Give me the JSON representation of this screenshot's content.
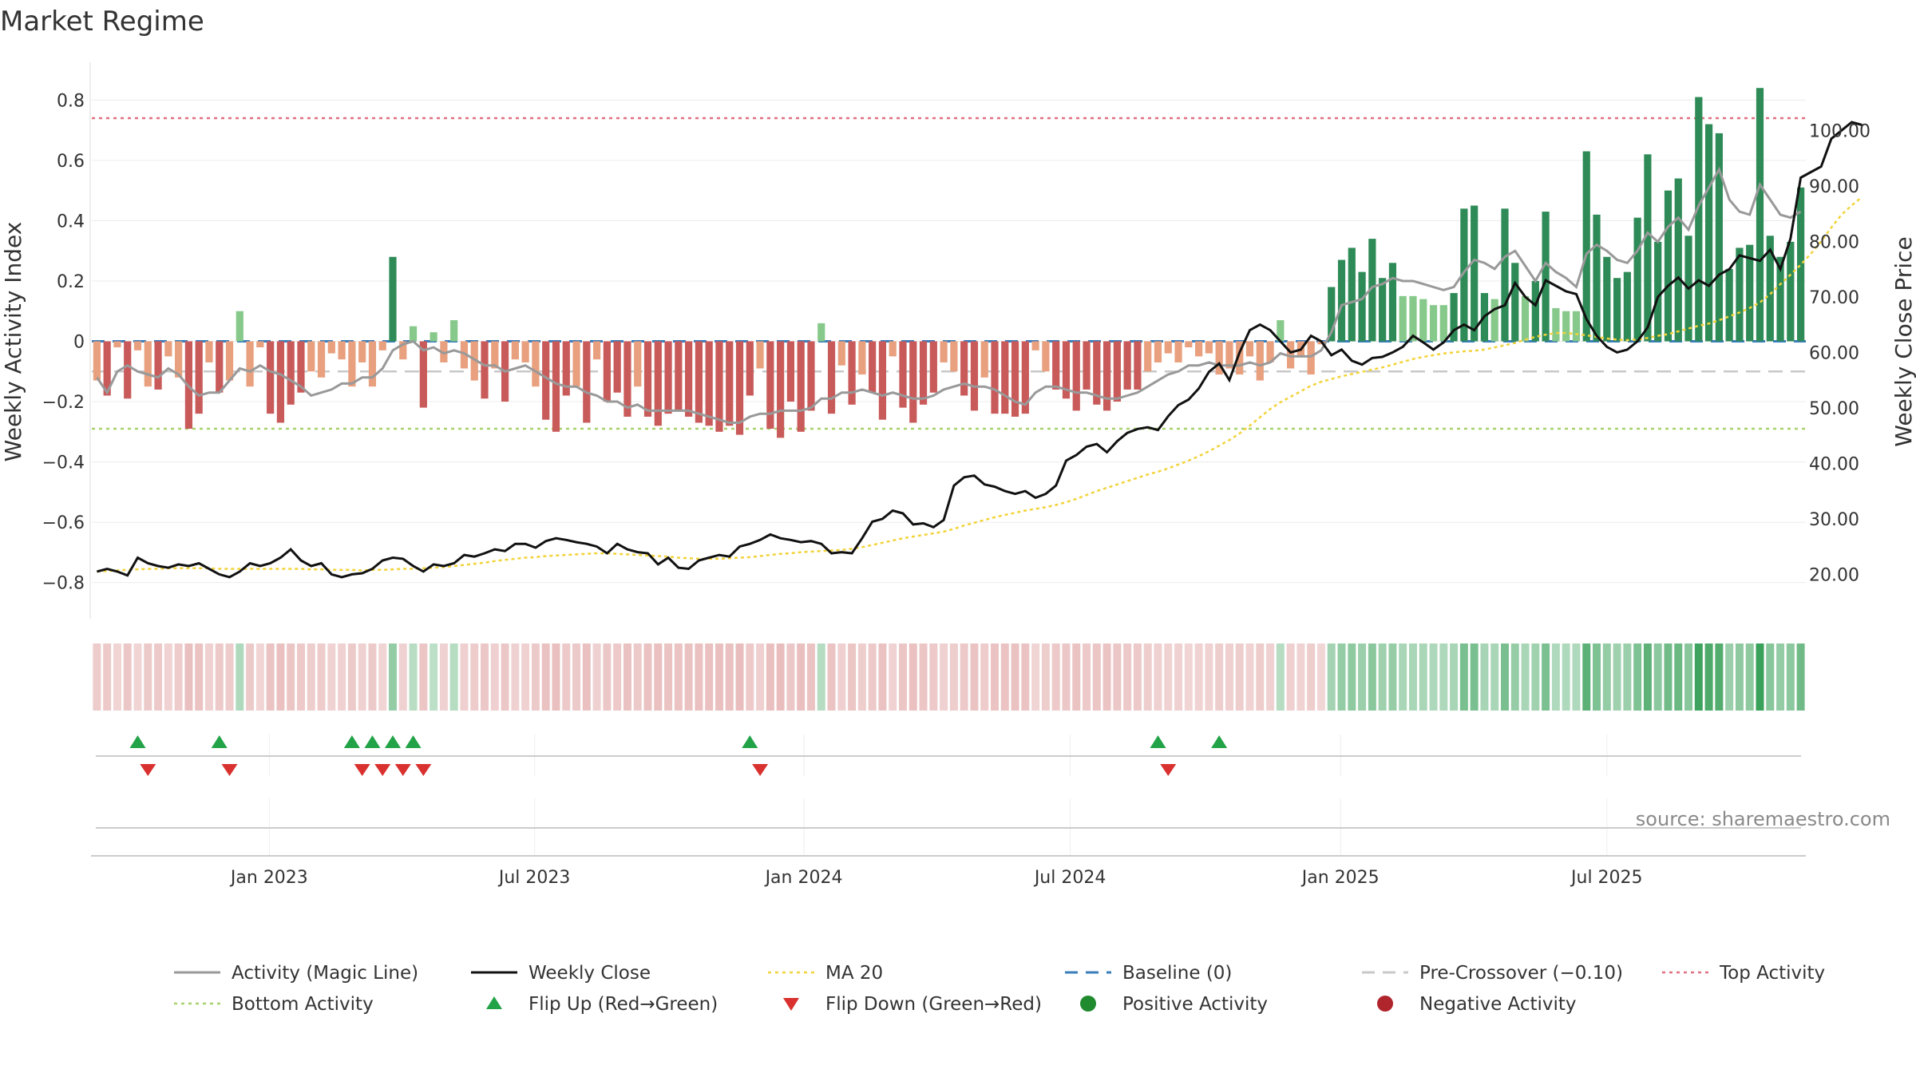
{
  "chart_data": {
    "type": "bar",
    "title": "Market Regime",
    "ylabel_left": "Weekly Activity Index",
    "ylabel_right": "Weekly Close Price",
    "left_ylim": [
      -0.92,
      0.92
    ],
    "right_ylim": [
      12,
      112
    ],
    "left_ticks": [
      "0.8",
      "0.6",
      "0.4",
      "0.2",
      "0",
      "−0.2",
      "−0.4",
      "−0.6",
      "−0.8"
    ],
    "right_ticks": [
      "100.00",
      "90.00",
      "80.00",
      "70.00",
      "60.00",
      "50.00",
      "40.00",
      "30.00",
      "20.00"
    ],
    "x_ticks": [
      "Jan 2023",
      "Jul 2023",
      "Jan 2024",
      "Jul 2024",
      "Jan 2025",
      "Jul 2025"
    ],
    "source": "source: sharemaestro.com",
    "levels": {
      "top_activity": 0.74,
      "bottom_activity": -0.29,
      "pre_crossover": -0.1,
      "baseline": 0
    },
    "series": [
      {
        "name": "Weekly Activity (bars)",
        "values": [
          -0.13,
          -0.18,
          -0.02,
          -0.19,
          -0.03,
          -0.15,
          -0.16,
          -0.05,
          -0.12,
          -0.29,
          -0.24,
          -0.07,
          -0.17,
          -0.13,
          0.1,
          -0.15,
          -0.02,
          -0.24,
          -0.27,
          -0.21,
          -0.17,
          -0.1,
          -0.12,
          -0.04,
          -0.06,
          -0.15,
          -0.07,
          -0.15,
          -0.03,
          0.28,
          -0.06,
          0.05,
          -0.22,
          0.03,
          -0.07,
          0.07,
          -0.09,
          -0.13,
          -0.19,
          -0.09,
          -0.2,
          -0.06,
          -0.07,
          -0.15,
          -0.26,
          -0.3,
          -0.18,
          -0.15,
          -0.27,
          -0.06,
          -0.2,
          -0.17,
          -0.25,
          -0.15,
          -0.25,
          -0.28,
          -0.24,
          -0.23,
          -0.25,
          -0.27,
          -0.28,
          -0.3,
          -0.28,
          -0.31,
          -0.18,
          -0.09,
          -0.29,
          -0.32,
          -0.2,
          -0.3,
          -0.23,
          0.06,
          -0.24,
          -0.08,
          -0.21,
          -0.11,
          -0.17,
          -0.26,
          -0.05,
          -0.22,
          -0.27,
          -0.21,
          -0.17,
          -0.07,
          -0.1,
          -0.18,
          -0.23,
          -0.12,
          -0.24,
          -0.24,
          -0.25,
          -0.24,
          -0.03,
          -0.1,
          -0.16,
          -0.19,
          -0.23,
          -0.16,
          -0.21,
          -0.23,
          -0.2,
          -0.16,
          -0.16,
          -0.1,
          -0.07,
          -0.04,
          -0.07,
          -0.02,
          -0.05,
          -0.04,
          -0.11,
          -0.09,
          -0.11,
          -0.05,
          -0.13,
          -0.07,
          0.07,
          -0.09,
          -0.05,
          -0.11,
          -0.01,
          0.18,
          0.27,
          0.31,
          0.23,
          0.34,
          0.21,
          0.26,
          0.15,
          0.15,
          0.14,
          0.12,
          0.12,
          0.16,
          0.44,
          0.45,
          0.16,
          0.14,
          0.44,
          0.26,
          0.15,
          0.2,
          0.43,
          0.11,
          0.1,
          0.1,
          0.63,
          0.42,
          0.28,
          0.21,
          0.23,
          0.41,
          0.62,
          0.33,
          0.5,
          0.54,
          0.35,
          0.81,
          0.72,
          0.69,
          0.24,
          0.31,
          0.32,
          0.84,
          0.35,
          0.28,
          0.33,
          0.51
        ]
      },
      {
        "name": "Activity (Magic Line)",
        "values": [
          -0.12,
          -0.17,
          -0.1,
          -0.08,
          -0.1,
          -0.11,
          -0.12,
          -0.09,
          -0.11,
          -0.15,
          -0.18,
          -0.17,
          -0.17,
          -0.13,
          -0.09,
          -0.1,
          -0.08,
          -0.1,
          -0.11,
          -0.13,
          -0.15,
          -0.18,
          -0.17,
          -0.16,
          -0.14,
          -0.14,
          -0.12,
          -0.12,
          -0.09,
          -0.03,
          -0.01,
          0.0,
          -0.03,
          -0.02,
          -0.04,
          -0.03,
          -0.04,
          -0.06,
          -0.08,
          -0.08,
          -0.1,
          -0.09,
          -0.08,
          -0.1,
          -0.12,
          -0.14,
          -0.15,
          -0.15,
          -0.17,
          -0.18,
          -0.2,
          -0.2,
          -0.22,
          -0.21,
          -0.23,
          -0.23,
          -0.23,
          -0.23,
          -0.23,
          -0.24,
          -0.25,
          -0.26,
          -0.27,
          -0.27,
          -0.25,
          -0.24,
          -0.24,
          -0.23,
          -0.23,
          -0.23,
          -0.22,
          -0.19,
          -0.19,
          -0.17,
          -0.17,
          -0.16,
          -0.17,
          -0.18,
          -0.17,
          -0.18,
          -0.19,
          -0.19,
          -0.18,
          -0.16,
          -0.15,
          -0.14,
          -0.15,
          -0.15,
          -0.16,
          -0.18,
          -0.2,
          -0.21,
          -0.17,
          -0.15,
          -0.15,
          -0.16,
          -0.17,
          -0.17,
          -0.18,
          -0.19,
          -0.19,
          -0.18,
          -0.17,
          -0.15,
          -0.13,
          -0.11,
          -0.1,
          -0.08,
          -0.08,
          -0.07,
          -0.08,
          -0.08,
          -0.08,
          -0.07,
          -0.08,
          -0.07,
          -0.04,
          -0.05,
          -0.05,
          -0.05,
          -0.03,
          0.03,
          0.12,
          0.13,
          0.14,
          0.18,
          0.19,
          0.21,
          0.2,
          0.2,
          0.19,
          0.18,
          0.17,
          0.18,
          0.23,
          0.27,
          0.26,
          0.24,
          0.28,
          0.3,
          0.25,
          0.2,
          0.26,
          0.23,
          0.21,
          0.18,
          0.29,
          0.32,
          0.3,
          0.27,
          0.26,
          0.3,
          0.36,
          0.33,
          0.38,
          0.41,
          0.37,
          0.45,
          0.51,
          0.57,
          0.47,
          0.43,
          0.42,
          0.52,
          0.47,
          0.42,
          0.41,
          0.43
        ]
      },
      {
        "name": "Weekly Close",
        "values": [
          20.5,
          21.0,
          20.5,
          19.8,
          23.0,
          22.0,
          21.5,
          21.2,
          21.8,
          21.5,
          22.0,
          21.0,
          20.0,
          19.5,
          20.5,
          22.0,
          21.5,
          22.0,
          23.0,
          24.5,
          22.5,
          21.5,
          22.0,
          20.0,
          19.5,
          20.0,
          20.2,
          21.0,
          22.5,
          23.0,
          22.8,
          21.5,
          20.5,
          21.8,
          21.5,
          22.0,
          23.5,
          23.2,
          23.8,
          24.5,
          24.2,
          25.5,
          25.5,
          24.8,
          26.0,
          26.5,
          26.2,
          25.8,
          25.5,
          25.0,
          23.8,
          25.5,
          24.5,
          24.0,
          23.8,
          21.8,
          23.0,
          21.2,
          21.0,
          22.5,
          23.0,
          23.5,
          23.2,
          25.0,
          25.5,
          26.2,
          27.2,
          26.5,
          26.2,
          25.8,
          26.0,
          25.5,
          23.8,
          24.0,
          23.8,
          26.5,
          29.5,
          30.0,
          31.5,
          31.0,
          29.0,
          29.2,
          28.5,
          29.8,
          36.0,
          37.5,
          37.8,
          36.2,
          35.8,
          35.0,
          34.5,
          35.0,
          33.8,
          34.5,
          36.0,
          40.5,
          41.5,
          43.0,
          43.5,
          42.0,
          44.0,
          45.5,
          46.2,
          46.5,
          46.0,
          48.5,
          50.5,
          51.5,
          53.5,
          56.5,
          58.0,
          55.0,
          60.0,
          64.0,
          65.0,
          64.0,
          62.0,
          60.0,
          60.5,
          63.0,
          62.0,
          59.5,
          60.5,
          58.5,
          57.8,
          59.0,
          59.2,
          60.0,
          61.0,
          63.0,
          61.8,
          60.5,
          61.8,
          64.0,
          65.0,
          64.0,
          66.5,
          67.8,
          68.5,
          72.5,
          70.0,
          68.5,
          73.0,
          72.0,
          71.0,
          70.5,
          66.0,
          63.0,
          61.0,
          60.0,
          60.5,
          62.0,
          64.5,
          70.0,
          72.0,
          73.5,
          71.5,
          73.0,
          72.0,
          74.0,
          75.0,
          77.5,
          77.0,
          76.5,
          78.5,
          75.0,
          80.5,
          91.5,
          92.5,
          93.5,
          98.5,
          100.0,
          101.5,
          101.0
        ]
      },
      {
        "name": "MA 20",
        "values": [
          20.5,
          20.6,
          20.7,
          20.8,
          20.9,
          21.0,
          21.0,
          21.1,
          21.1,
          21.1,
          21.1,
          21.1,
          21.0,
          21.0,
          21.0,
          21.0,
          21.0,
          21.0,
          21.0,
          21.0,
          21.0,
          20.9,
          20.9,
          20.8,
          20.8,
          20.8,
          20.7,
          20.8,
          20.8,
          20.9,
          21.0,
          21.0,
          21.1,
          21.2,
          21.3,
          21.5,
          21.7,
          21.9,
          22.1,
          22.4,
          22.6,
          22.8,
          23.0,
          23.1,
          23.3,
          23.4,
          23.5,
          23.6,
          23.7,
          23.8,
          23.8,
          23.7,
          23.6,
          23.5,
          23.4,
          23.3,
          23.2,
          23.0,
          22.9,
          22.8,
          22.8,
          22.8,
          22.9,
          23.0,
          23.1,
          23.3,
          23.5,
          23.7,
          23.8,
          24.0,
          24.1,
          24.2,
          24.3,
          24.4,
          24.6,
          24.9,
          25.3,
          25.7,
          26.1,
          26.5,
          26.8,
          27.1,
          27.4,
          27.7,
          28.2,
          28.8,
          29.3,
          29.8,
          30.3,
          30.7,
          31.1,
          31.5,
          31.8,
          32.1,
          32.5,
          33.0,
          33.6,
          34.3,
          35.0,
          35.6,
          36.2,
          36.8,
          37.4,
          38.0,
          38.5,
          39.1,
          39.8,
          40.5,
          41.3,
          42.2,
          43.2,
          44.2,
          45.4,
          46.8,
          48.3,
          49.8,
          51.0,
          52.0,
          53.0,
          54.0,
          54.7,
          55.2,
          55.7,
          56.1,
          56.5,
          56.9,
          57.3,
          57.8,
          58.3,
          58.8,
          59.2,
          59.5,
          59.8,
          60.0,
          60.2,
          60.3,
          60.5,
          60.9,
          61.3,
          61.7,
          62.3,
          62.8,
          63.2,
          63.5,
          63.5,
          63.3,
          63.1,
          62.8,
          62.5,
          62.3,
          62.2,
          62.3,
          62.6,
          63.0,
          63.3,
          63.8,
          64.3,
          64.8,
          65.2,
          65.8,
          66.5,
          67.2,
          68.0,
          69.0,
          70.5,
          72.3,
          74.0,
          75.8,
          77.8,
          80.0,
          82.5,
          84.8,
          86.5,
          88.0
        ]
      }
    ],
    "legend": [
      {
        "label": "Activity (Magic Line)",
        "marker": "line",
        "color": "#999999"
      },
      {
        "label": "Weekly Close",
        "marker": "line",
        "color": "#111111"
      },
      {
        "label": "MA 20",
        "marker": "dotted",
        "color": "#f2d33a"
      },
      {
        "label": "Baseline (0)",
        "marker": "dashed",
        "color": "#3a7dbb"
      },
      {
        "label": "Pre-Crossover (−0.10)",
        "marker": "dashed",
        "color": "#c8c8c8"
      },
      {
        "label": "Top Activity",
        "marker": "dotted",
        "color": "#e07080"
      },
      {
        "label": "Bottom Activity",
        "marker": "dotted",
        "color": "#a7d16b"
      },
      {
        "label": "Flip Up (Red→Green)",
        "marker": "triangle-up",
        "color": "#22a347"
      },
      {
        "label": "Flip Down (Green→Red)",
        "marker": "triangle-down",
        "color": "#d9312f"
      },
      {
        "label": "Positive Activity",
        "marker": "dot",
        "color": "#1f8a2e"
      },
      {
        "label": "Negative Activity",
        "marker": "dot",
        "color": "#b0242c"
      }
    ],
    "flip_up_weeks": [
      4,
      12,
      25,
      27,
      29,
      31,
      64,
      104,
      110
    ],
    "flip_down_weeks": [
      5,
      13,
      26,
      28,
      30,
      32,
      65,
      105
    ],
    "colors": {
      "pos_dark": "#2e8b57",
      "pos_light": "#86c98a",
      "neg_dark": "#c95a5a",
      "neg_light": "#e8a07e",
      "magic": "#999999",
      "close": "#111111",
      "ma": "#f2d33a",
      "baseline": "#3a7dbb",
      "pre": "#c8c8c8",
      "top": "#e07080",
      "bottom": "#a7d16b",
      "flip_up": "#22a347",
      "flip_down": "#d9312f"
    }
  }
}
